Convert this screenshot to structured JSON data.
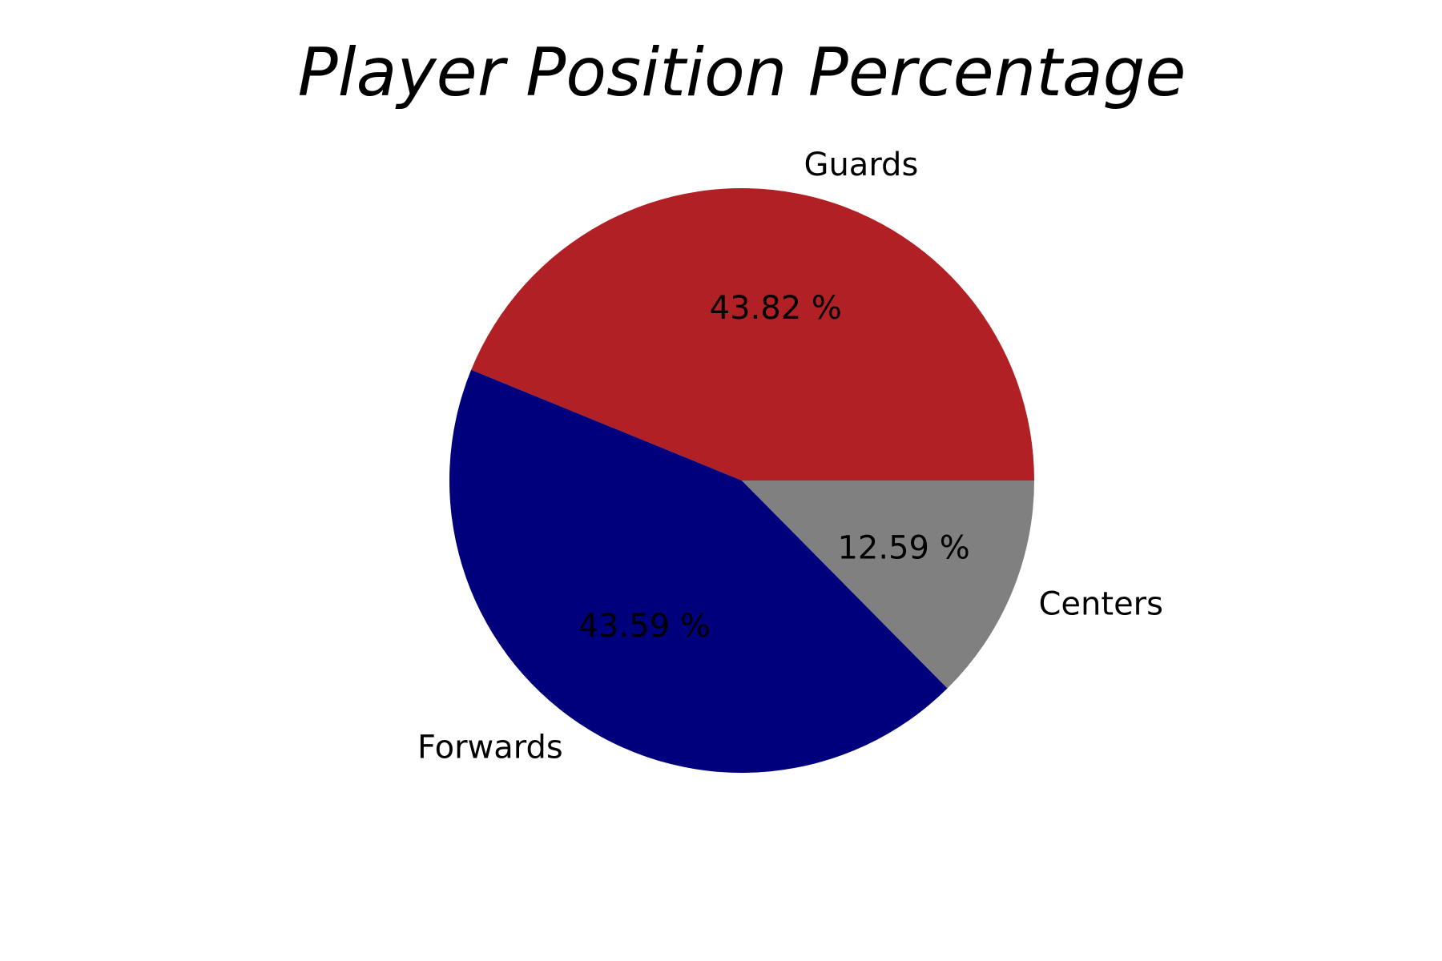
{
  "chart_data": {
    "type": "pie",
    "title": "Player Position Percentage",
    "categories": [
      "Guards",
      "Forwards",
      "Centers"
    ],
    "values": [
      43.82,
      43.59,
      12.59
    ],
    "value_labels": [
      "43.82 %",
      "43.59 %",
      "12.59 %"
    ],
    "colors": [
      "#b02024",
      "#00007c",
      "#808080"
    ],
    "start_angle_deg": 0,
    "direction": "counterclockwise",
    "legend": "none"
  }
}
